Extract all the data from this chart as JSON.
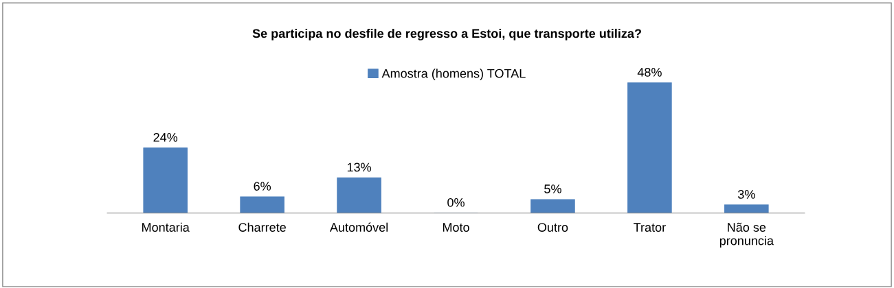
{
  "chart_data": {
    "type": "bar",
    "title": "Se participa no desfile de regresso a Estoi, que transporte utiliza?",
    "categories": [
      "Montaria",
      "Charrete",
      "Automóvel",
      "Moto",
      "Outro",
      "Trator",
      "Não se pronuncia"
    ],
    "series": [
      {
        "name": "Amostra (homens) TOTAL",
        "color": "#4f81bd",
        "values": [
          24,
          6,
          13,
          0,
          5,
          48,
          3
        ],
        "value_labels": [
          "24%",
          "6%",
          "13%",
          "0%",
          "5%",
          "48%",
          "3%"
        ]
      }
    ],
    "legend": "top",
    "grid": false
  }
}
